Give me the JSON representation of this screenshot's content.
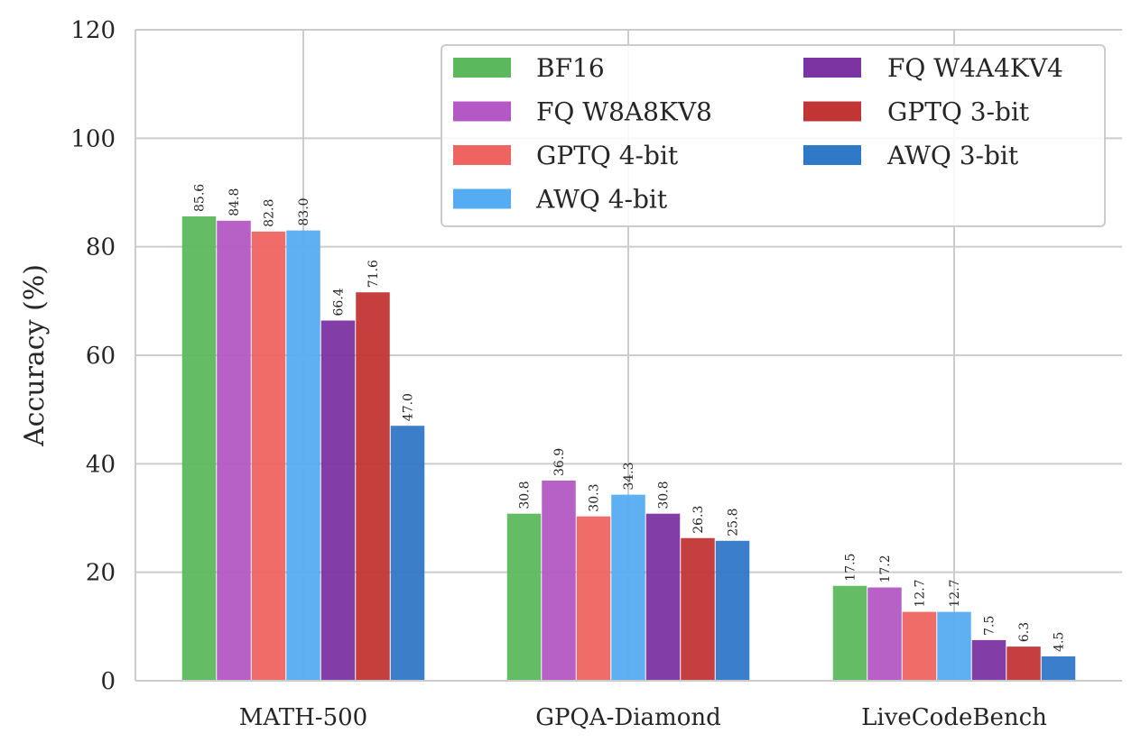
{
  "chart_data": {
    "type": "bar",
    "title": "",
    "xlabel": "",
    "ylabel": "Accuracy (%)",
    "ylim": [
      0,
      120
    ],
    "yticks": [
      "0",
      "20",
      "40",
      "60",
      "80",
      "100",
      "120"
    ],
    "grid": true,
    "legend_position": "top-right",
    "categories": [
      "MATH-500",
      "GPQA-Diamond",
      "LiveCodeBench"
    ],
    "series": [
      {
        "name": "BF16",
        "color": "#5cb85c",
        "values": [
          85.6,
          30.8,
          17.5
        ],
        "labels": [
          "85.6",
          "30.8",
          "17.5"
        ]
      },
      {
        "name": "FQ W8A8KV8",
        "color": "#b358c4",
        "values": [
          84.8,
          36.9,
          17.2
        ],
        "labels": [
          "84.8",
          "36.9",
          "17.2"
        ]
      },
      {
        "name": "GPTQ 4-bit",
        "color": "#ef6461",
        "values": [
          82.8,
          30.3,
          12.7
        ],
        "labels": [
          "82.8",
          "30.3",
          "12.7"
        ]
      },
      {
        "name": "AWQ 4-bit",
        "color": "#56acf2",
        "values": [
          83.0,
          34.3,
          12.7
        ],
        "labels": [
          "83.0",
          "34.3",
          "12.7"
        ]
      },
      {
        "name": "FQ W4A4KV4",
        "color": "#7b34a1",
        "values": [
          66.4,
          30.8,
          7.5
        ],
        "labels": [
          "66.4",
          "30.8",
          "7.5"
        ]
      },
      {
        "name": "GPTQ 3-bit",
        "color": "#c23535",
        "values": [
          71.6,
          26.3,
          6.3
        ],
        "labels": [
          "71.6",
          "26.3",
          "6.3"
        ]
      },
      {
        "name": "AWQ 3-bit",
        "color": "#3078c8",
        "values": [
          47.0,
          25.8,
          4.5
        ],
        "labels": [
          "47.0",
          "25.8",
          "4.5"
        ]
      }
    ]
  }
}
